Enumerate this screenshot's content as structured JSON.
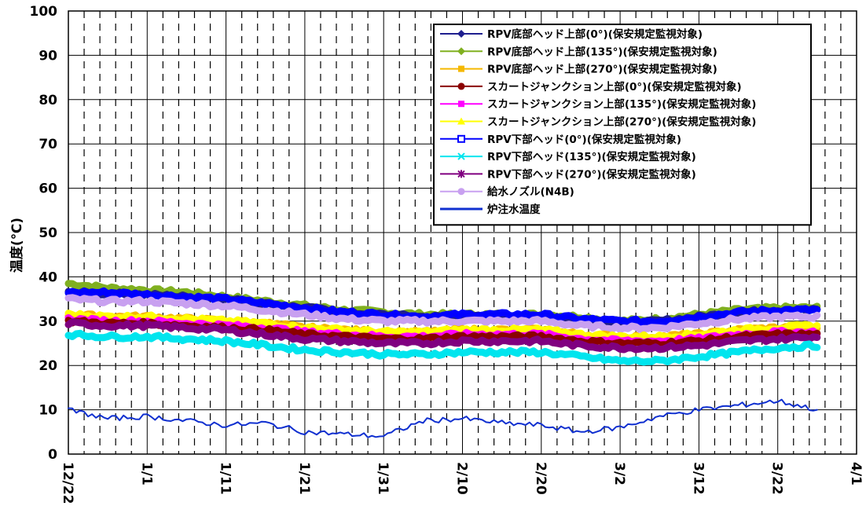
{
  "chart_data": {
    "type": "line",
    "ylabel": "温度(℃)",
    "ylim": [
      0,
      100
    ],
    "yticks": [
      "0",
      "10",
      "20",
      "30",
      "40",
      "50",
      "60",
      "70",
      "80",
      "90",
      "100"
    ],
    "x_tick_labels": [
      "12/22",
      "1/1",
      "1/11",
      "1/21",
      "1/31",
      "2/10",
      "2/20",
      "3/2",
      "3/12",
      "3/22",
      "4/1"
    ],
    "xlim": [
      "12/22",
      "4/1"
    ],
    "grid": "solid major gridlines, dashed minor vertical lines every 2 days",
    "legend_position": "top-right",
    "x": [
      "12/22",
      "12/27",
      "1/1",
      "1/6",
      "1/11",
      "1/16",
      "1/21",
      "1/26",
      "1/31",
      "2/5",
      "2/10",
      "2/15",
      "2/20",
      "2/25",
      "3/2",
      "3/7",
      "3/12",
      "3/17",
      "3/22",
      "3/27"
    ],
    "series": [
      {
        "name": "RPV底部ヘッド上部(0°)(保安規定監視対象)",
        "color": "#1f1f8f",
        "marker": "diamond",
        "values": [
          36.5,
          36.2,
          36,
          35.5,
          35,
          34,
          33,
          32,
          31.5,
          31,
          31,
          31,
          31,
          30,
          29.5,
          30,
          31,
          32,
          32.5,
          32.5
        ]
      },
      {
        "name": "RPV底部ヘッド上部(135°)(保安規定監視対象)",
        "color": "#80b020",
        "marker": "diamond",
        "values": [
          38.5,
          37.5,
          37,
          36.5,
          35.5,
          34.5,
          33.5,
          32.5,
          32,
          31.5,
          31.5,
          31.5,
          31.5,
          31,
          30,
          30.5,
          31.5,
          32.5,
          33,
          33
        ]
      },
      {
        "name": "RPV底部ヘッド上部(270°)(保安規定監視対象)",
        "color": "#f5b800",
        "marker": "square",
        "values": [
          31.5,
          31,
          31,
          30.5,
          30,
          29.5,
          28.5,
          28,
          27.5,
          27.5,
          28,
          28,
          28,
          27,
          26.5,
          26.5,
          27,
          28,
          28.5,
          28.5
        ]
      },
      {
        "name": "スカートジャンクション上部(0°)(保安規定監視対象)",
        "color": "#8b0000",
        "marker": "circle",
        "values": [
          30,
          29.5,
          29.5,
          29,
          28.5,
          28,
          27,
          26.5,
          26,
          26,
          26.5,
          26.5,
          26.5,
          25.5,
          25,
          25,
          25.5,
          26.5,
          27,
          27
        ]
      },
      {
        "name": "スカートジャンクション上部(135°)(保安規定監視対象)",
        "color": "#ff00ff",
        "marker": "square",
        "values": [
          30.5,
          30,
          30,
          29.5,
          29,
          28.5,
          27.5,
          27,
          26.5,
          26.5,
          27,
          27,
          27,
          26,
          25.5,
          25.5,
          26,
          27,
          27.5,
          27.5
        ]
      },
      {
        "name": "スカートジャンクション上部(270°)(保安規定監視対象)",
        "color": "#ffff00",
        "marker": "triangle",
        "values": [
          31.5,
          31,
          31,
          30.5,
          30,
          29.5,
          28.5,
          28,
          27.5,
          27.5,
          28,
          28,
          28,
          27,
          26.5,
          26.5,
          27,
          28,
          28.5,
          29
        ]
      },
      {
        "name": "RPV下部ヘッド(0°)(保安規定監視対象)",
        "color": "#0000ff",
        "marker": "open-square",
        "values": [
          36.5,
          36.5,
          36,
          35.5,
          35,
          34,
          33,
          32,
          31.5,
          31,
          31.5,
          31.5,
          31.5,
          30.5,
          30,
          30,
          31,
          32,
          32.5,
          32.5
        ]
      },
      {
        "name": "RPV下部ヘッド(135°)(保安規定監視対象)",
        "color": "#00e5ee",
        "marker": "x",
        "values": [
          27,
          26.5,
          26.5,
          26,
          25.5,
          24.5,
          23.5,
          23,
          22.5,
          22.5,
          23,
          23,
          23,
          22,
          21,
          21,
          22,
          23,
          24,
          24.5
        ]
      },
      {
        "name": "RPV下部ヘッド(270°)(保安規定監視対象)",
        "color": "#800080",
        "marker": "star",
        "values": [
          29.5,
          29,
          29,
          28.5,
          28,
          27,
          26,
          25.5,
          25,
          25,
          25.5,
          25.5,
          25.5,
          24.5,
          24,
          24,
          24.5,
          25.5,
          26,
          26.5
        ]
      },
      {
        "name": "給水ノズル(N4B)",
        "color": "#c8a0f0",
        "marker": "circle",
        "values": [
          35,
          34.5,
          34.5,
          34,
          33.5,
          32.5,
          31.5,
          30.5,
          30,
          30,
          30,
          30,
          30,
          29,
          28.5,
          28.5,
          29.5,
          30.5,
          31,
          31
        ]
      },
      {
        "name": "炉注水温度",
        "color": "#1030d0",
        "marker": "none",
        "values": [
          10,
          8,
          8.5,
          7.5,
          6.5,
          7,
          5,
          4.5,
          4,
          7.5,
          8,
          7,
          6.5,
          5,
          6,
          8.5,
          10,
          11,
          12,
          10
        ]
      }
    ]
  }
}
